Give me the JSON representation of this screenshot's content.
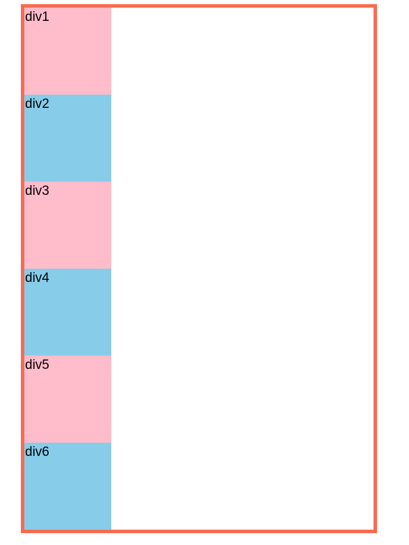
{
  "container": {
    "border_color": "#f96b50"
  },
  "boxes": [
    {
      "label": "div1",
      "color": "#ffbccb"
    },
    {
      "label": "div2",
      "color": "#87cdea"
    },
    {
      "label": "div3",
      "color": "#ffbccb"
    },
    {
      "label": "div4",
      "color": "#87cdea"
    },
    {
      "label": "div5",
      "color": "#ffbccb"
    },
    {
      "label": "div6",
      "color": "#87cdea"
    }
  ]
}
